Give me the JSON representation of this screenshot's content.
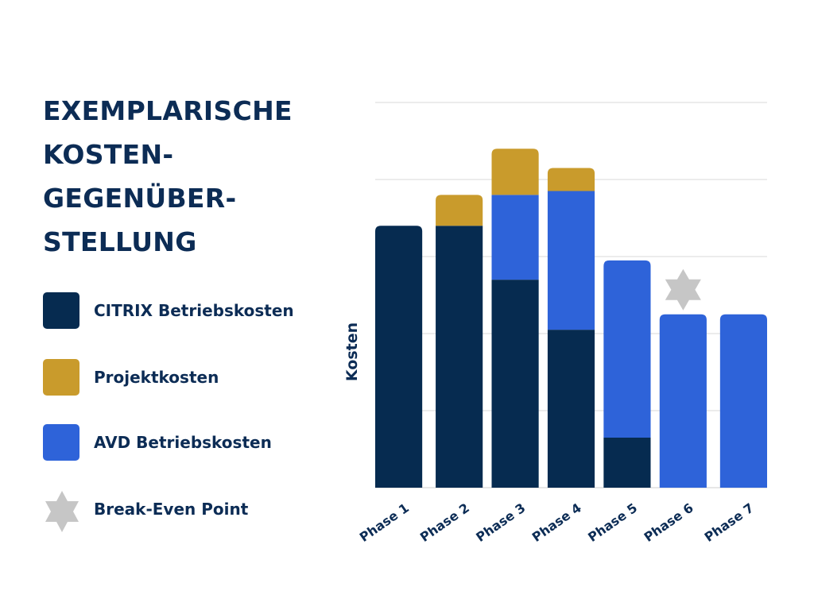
{
  "title_lines": [
    "EXEMPLARISCHE",
    "KOSTEN-",
    "GEGENÜBER-",
    "STELLUNG"
  ],
  "legend": [
    {
      "label": "CITRIX Betriebskosten",
      "color": "#062b50",
      "icon": "square"
    },
    {
      "label": "Projektkosten",
      "color": "#c99b2c",
      "icon": "square"
    },
    {
      "label": "AVD Betriebskosten",
      "color": "#2e63d9",
      "icon": "square"
    },
    {
      "label": "Break-Even Point",
      "color": "#c6c6c6",
      "icon": "star-icon"
    }
  ],
  "chart_data": {
    "type": "bar",
    "stacked": true,
    "categories": [
      "Phase 1",
      "Phase 2",
      "Phase 3",
      "Phase 4",
      "Phase 5",
      "Phase 6",
      "Phase 7"
    ],
    "series": [
      {
        "name": "CITRIX Betriebskosten",
        "color": "#062b50",
        "values": [
          3.4,
          3.4,
          2.7,
          2.05,
          0.65,
          0,
          0
        ]
      },
      {
        "name": "AVD Betriebskosten",
        "color": "#2e63d9",
        "values": [
          0,
          0,
          1.1,
          1.8,
          2.3,
          2.25,
          2.25
        ]
      },
      {
        "name": "Projektkosten",
        "color": "#c99b2c",
        "values": [
          0,
          0.4,
          0.6,
          0.3,
          0,
          0,
          0
        ]
      }
    ],
    "ylabel": "Kosten",
    "xlabel": "",
    "ylim": [
      0,
      5
    ],
    "grid": true,
    "break_even_category": "Phase 6",
    "break_even_color": "#c6c6c6"
  }
}
